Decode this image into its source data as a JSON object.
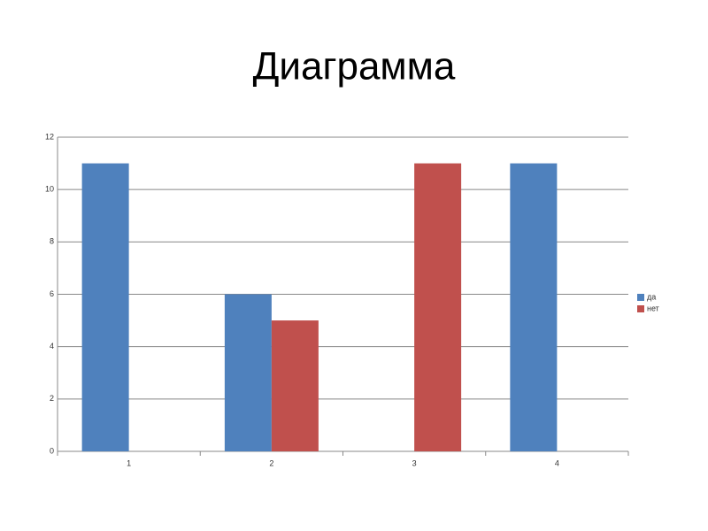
{
  "chart_data": {
    "type": "bar",
    "title": "Диаграмма",
    "categories": [
      "1",
      "2",
      "3",
      "4"
    ],
    "series": [
      {
        "name": "да",
        "color": "#4f81bd",
        "values": [
          11,
          6,
          null,
          11
        ]
      },
      {
        "name": "нет",
        "color": "#c0504d",
        "values": [
          null,
          5,
          11,
          null
        ]
      }
    ],
    "ylim": [
      0,
      12
    ],
    "yticks": [
      0,
      2,
      4,
      6,
      8,
      10,
      12
    ],
    "grid": true,
    "legend": "right"
  }
}
